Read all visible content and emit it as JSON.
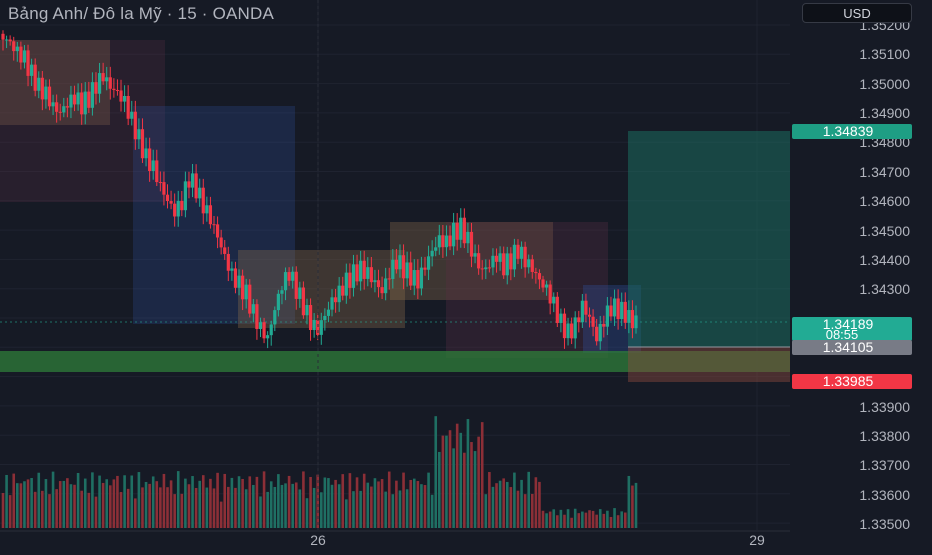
{
  "header": {
    "symbol_title": "Bảng Anh/ Đô la Mỹ · 15 · OANDA",
    "currency": "USD"
  },
  "price_axis": {
    "ticks": [
      "1.35200",
      "1.35100",
      "1.35000",
      "1.34900",
      "1.34800",
      "1.34700",
      "1.34600",
      "1.34500",
      "1.34400",
      "1.34300",
      "1.33900",
      "1.33800",
      "1.33700",
      "1.33600",
      "1.33500"
    ]
  },
  "badges": {
    "target": {
      "label": "1.34839",
      "value": 1.34839,
      "color": "#1e9e84"
    },
    "last": {
      "label": "1.34189",
      "countdown": "08:55",
      "value": 1.34189,
      "color": "#22ab94"
    },
    "entry": {
      "label": "1.34105",
      "value": 1.34105,
      "color": "#787b86"
    },
    "stop": {
      "label": "1.33985",
      "value": 1.33985,
      "color": "#f23645"
    }
  },
  "time_axis": {
    "labels": [
      {
        "text": "26"
      },
      {
        "text": "29"
      }
    ]
  },
  "colors": {
    "background": "#161a25",
    "up": "#22ab94",
    "down": "#f23645",
    "grid": "#1f2330",
    "axis_text": "#b2b5be"
  },
  "chart_data": {
    "type": "candlestick",
    "symbol": "GBP/USD",
    "interval": "15",
    "source": "OANDA",
    "y_range": [
      1.3345,
      1.3525
    ],
    "grid": true,
    "last_price": 1.34189,
    "countdown": "08:55",
    "long_position": {
      "entry": 1.34105,
      "target": 1.34839,
      "stop": 1.33985
    },
    "support_zone": [
      1.33997,
      1.34068
    ],
    "candles_close_path": [
      1.3515,
      1.3513,
      1.351,
      1.3508,
      1.3503,
      1.3499,
      1.3497,
      1.3493,
      1.3491,
      1.3494,
      1.3496,
      1.3493,
      1.3495,
      1.3499,
      1.3502,
      1.3498,
      1.3496,
      1.3493,
      1.3487,
      1.3481,
      1.3475,
      1.3472,
      1.3466,
      1.3461,
      1.3457,
      1.346,
      1.3468,
      1.3464,
      1.3458,
      1.3453,
      1.3447,
      1.344,
      1.3434,
      1.3431,
      1.3428,
      1.3422,
      1.3417,
      1.3414,
      1.3424,
      1.3432,
      1.3436,
      1.343,
      1.3424,
      1.3418,
      1.3415,
      1.342,
      1.3425,
      1.3428,
      1.3432,
      1.3435,
      1.3437,
      1.3436,
      1.3433,
      1.343,
      1.3436,
      1.344,
      1.3437,
      1.3434,
      1.3432,
      1.3437,
      1.3442,
      1.3446,
      1.3445,
      1.3449,
      1.3451,
      1.3447,
      1.3441,
      1.3437,
      1.3439,
      1.3442,
      1.3438,
      1.344,
      1.3443,
      1.3439,
      1.3436,
      1.3432,
      1.3429,
      1.3424,
      1.3418,
      1.3415,
      1.3418,
      1.3425,
      1.3421,
      1.3414,
      1.342,
      1.3424,
      1.3423,
      1.3421,
      1.3418,
      1.3419
    ]
  }
}
